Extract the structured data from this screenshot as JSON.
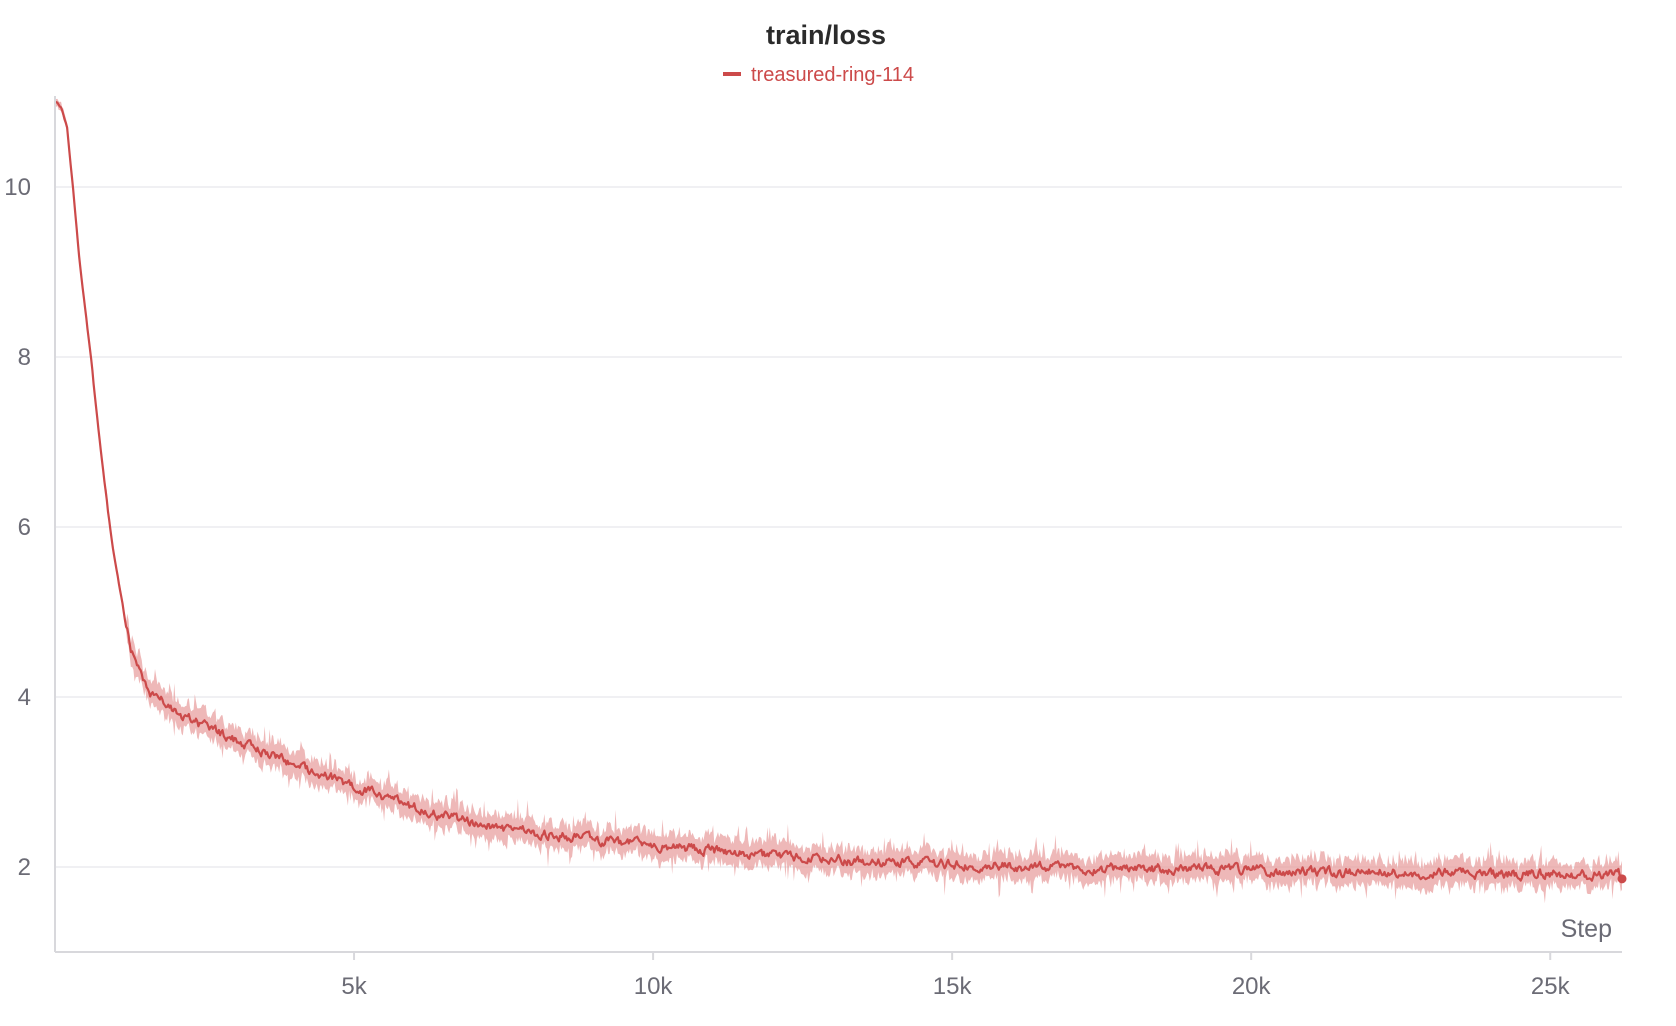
{
  "chart_data": {
    "type": "line",
    "title": "train/loss",
    "xlabel": "Step",
    "ylabel": "",
    "xlim": [
      0,
      26200
    ],
    "ylim": [
      1.0,
      11.0
    ],
    "x_ticks": [
      5000,
      10000,
      15000,
      20000,
      25000
    ],
    "x_tick_labels": [
      "5k",
      "10k",
      "15k",
      "20k",
      "25k"
    ],
    "y_ticks": [
      2,
      4,
      6,
      8,
      10
    ],
    "y_tick_labels": [
      "2",
      "4",
      "6",
      "8",
      "10"
    ],
    "grid": true,
    "legend_position": "top-center",
    "colors": {
      "line": "#cc4a4a",
      "band": "#e79a9a",
      "grid": "#ececef",
      "axis": "#d8d8dc"
    },
    "series": [
      {
        "name": "treasured-ring-114",
        "x": [
          0,
          100,
          200,
          300,
          400,
          500,
          600,
          700,
          800,
          900,
          1000,
          1100,
          1200,
          1300,
          1400,
          1500,
          1600,
          1700,
          1800,
          2000,
          2200,
          2500,
          3000,
          3500,
          4000,
          4500,
          5000,
          5500,
          6000,
          6500,
          7000,
          7500,
          8000,
          8500,
          9000,
          9500,
          10000,
          10500,
          11000,
          11500,
          12000,
          12500,
          13000,
          13500,
          14000,
          14500,
          15000,
          15500,
          16000,
          16500,
          17000,
          17500,
          18000,
          18500,
          19000,
          19500,
          20000,
          20500,
          21000,
          21500,
          22000,
          22500,
          23000,
          23500,
          24000,
          24500,
          25000,
          25500,
          26000,
          26200
        ],
        "y": [
          11.0,
          10.95,
          10.7,
          10.0,
          9.2,
          8.6,
          8.0,
          7.3,
          6.7,
          6.1,
          5.6,
          5.2,
          4.8,
          4.5,
          4.3,
          4.15,
          4.05,
          4.0,
          3.95,
          3.85,
          3.75,
          3.65,
          3.5,
          3.35,
          3.2,
          3.08,
          2.95,
          2.82,
          2.7,
          2.6,
          2.52,
          2.45,
          2.4,
          2.36,
          2.32,
          2.28,
          2.25,
          2.22,
          2.2,
          2.16,
          2.13,
          2.1,
          2.08,
          2.06,
          2.05,
          2.04,
          2.03,
          2.02,
          2.01,
          2.0,
          1.99,
          1.98,
          1.98,
          1.97,
          1.97,
          1.96,
          1.96,
          1.95,
          1.95,
          1.94,
          1.94,
          1.93,
          1.93,
          1.93,
          1.92,
          1.92,
          1.92,
          1.91,
          1.91,
          1.91
        ]
      }
    ]
  }
}
